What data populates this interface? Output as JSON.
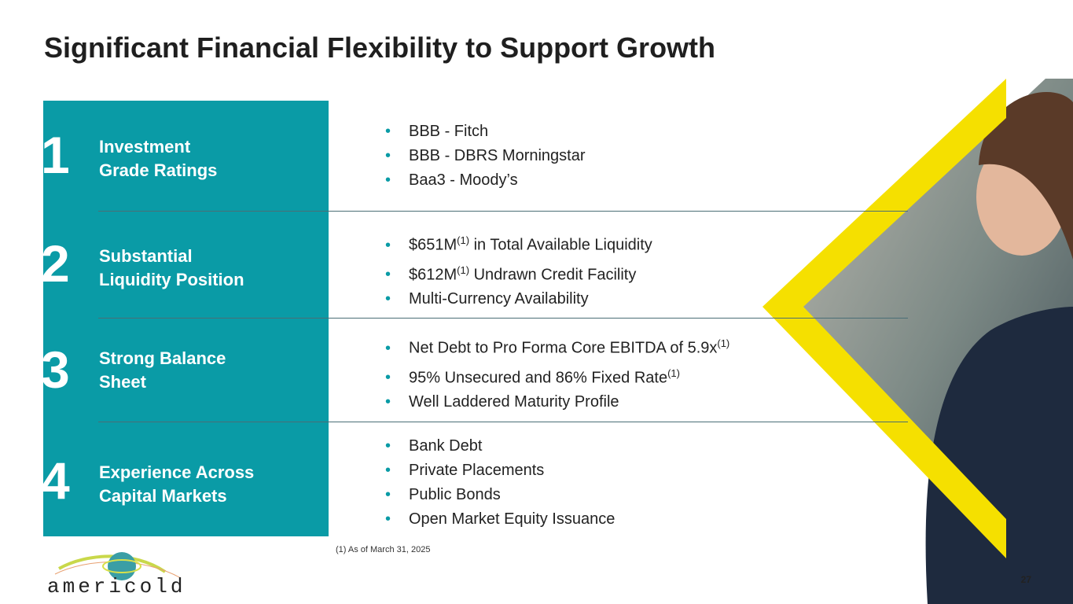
{
  "title": "Significant Financial Flexibility to Support Growth",
  "sections": [
    {
      "number": "1",
      "label_line1": "Investment",
      "label_line2": "Grade Ratings",
      "bullets": [
        "BBB  - Fitch",
        "BBB  - DBRS Morningstar",
        "Baa3 - Moody’s"
      ]
    },
    {
      "number": "2",
      "label_line1": "Substantial",
      "label_line2": "Liquidity Position",
      "bullets": [
        {
          "pre": "$651M",
          "sup": "(1)",
          "post": " in Total Available Liquidity"
        },
        {
          "pre": "$612M",
          "sup": "(1)",
          "post": " Undrawn Credit Facility"
        },
        "Multi-Currency Availability"
      ]
    },
    {
      "number": "3",
      "label_line1": "Strong Balance",
      "label_line2": "Sheet",
      "bullets": [
        {
          "pre": "Net Debt to Pro Forma Core EBITDA of 5.9x",
          "sup": "(1)",
          "post": ""
        },
        {
          "pre": "95% Unsecured and 86% Fixed Rate",
          "sup": "(1)",
          "post": ""
        },
        "Well Laddered Maturity Profile"
      ]
    },
    {
      "number": "4",
      "label_line1": "Experience Across",
      "label_line2": "Capital Markets",
      "bullets": [
        "Bank Debt",
        "Private Placements",
        "Public Bonds",
        "Open Market Equity Issuance"
      ]
    }
  ],
  "footnote": "(1) As of March 31, 2025",
  "page_number": "27",
  "logo_text": "americold",
  "colors": {
    "teal": "#0a9ba6",
    "yellow": "#f5e000"
  }
}
